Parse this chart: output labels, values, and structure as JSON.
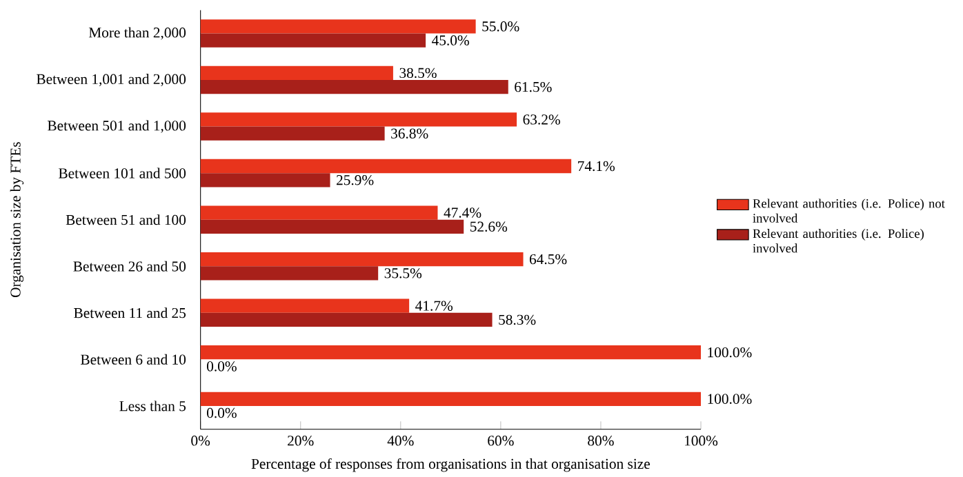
{
  "chart_data": {
    "type": "bar",
    "orientation": "horizontal",
    "ylabel": "Organisation size by FTEs",
    "xlabel": "Percentage  of responses from organisations in that organisation size",
    "categories": [
      "More than 2,000",
      "Between 1,001 and 2,000",
      "Between 501 and 1,000",
      "Between 101 and 500",
      "Between 51 and 100",
      "Between 26 and 50",
      "Between 11 and 25",
      "Between 6 and 10",
      "Less than 5"
    ],
    "series": [
      {
        "name": "Relevant authorities (i.e. Police) not involved",
        "color": "#e8341c",
        "values": [
          55.0,
          38.5,
          63.2,
          74.1,
          47.4,
          64.5,
          41.7,
          100.0,
          100.0
        ],
        "value_labels": [
          "55.0%",
          "38.5%",
          "63.2%",
          "74.1%",
          "47.4%",
          "64.5%",
          "41.7%",
          "100.0%",
          "100.0%"
        ]
      },
      {
        "name": "Relevant authorities (i.e. Police) involved",
        "color": "#a8201a",
        "values": [
          45.0,
          61.5,
          36.8,
          25.9,
          52.6,
          35.5,
          58.3,
          0.0,
          0.0
        ],
        "value_labels": [
          "45.0%",
          "61.5%",
          "36.8%",
          "25.9%",
          "52.6%",
          "35.5%",
          "58.3%",
          "0.0%",
          "0.0%"
        ]
      }
    ],
    "xlim": [
      0,
      100
    ],
    "xticks": [
      {
        "value": 0,
        "label": "0%"
      },
      {
        "value": 20,
        "label": "20%"
      },
      {
        "value": 40,
        "label": "40%"
      },
      {
        "value": 60,
        "label": "60%"
      },
      {
        "value": 80,
        "label": "80%"
      },
      {
        "value": 100,
        "label": "100%"
      }
    ],
    "legend": "right"
  }
}
